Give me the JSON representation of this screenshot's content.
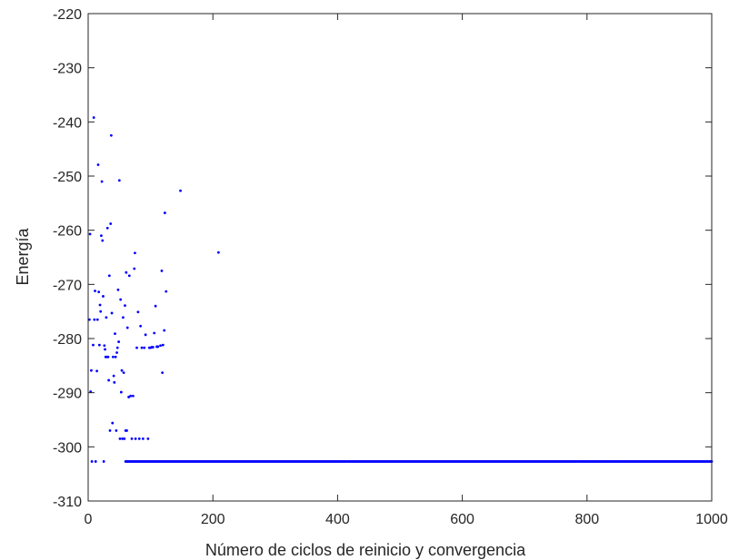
{
  "chart_data": {
    "type": "scatter",
    "title": "",
    "xlabel": "Número de ciclos de reinicio y convergencia",
    "ylabel": "Energía",
    "xlim": [
      0,
      1000
    ],
    "ylim": [
      -310,
      -220
    ],
    "xticks": [
      0,
      200,
      400,
      600,
      800,
      1000
    ],
    "yticks": [
      -310,
      -300,
      -290,
      -280,
      -270,
      -260,
      -250,
      -240,
      -230,
      -220
    ],
    "grid": false,
    "legend": "none",
    "marker_color": "#0000ff",
    "points": [
      [
        2,
        -276.5
      ],
      [
        3,
        -260.7
      ],
      [
        4,
        -289.8
      ],
      [
        5,
        -285.9
      ],
      [
        6,
        -302.7
      ],
      [
        8,
        -281.2
      ],
      [
        9,
        -239.2
      ],
      [
        10,
        -276.5
      ],
      [
        11,
        -271.2
      ],
      [
        12,
        -302.7
      ],
      [
        14,
        -286.0
      ],
      [
        15,
        -276.5
      ],
      [
        16,
        -247.9
      ],
      [
        17,
        -271.4
      ],
      [
        18,
        -281.2
      ],
      [
        19,
        -273.8
      ],
      [
        20,
        -275.0
      ],
      [
        21,
        -261.0
      ],
      [
        22,
        -251.0
      ],
      [
        23,
        -261.9
      ],
      [
        24,
        -272.2
      ],
      [
        25,
        -302.7
      ],
      [
        26,
        -281.3
      ],
      [
        27,
        -282.0
      ],
      [
        28,
        -283.4
      ],
      [
        29,
        -276.1
      ],
      [
        30,
        -283.4
      ],
      [
        31,
        -259.6
      ],
      [
        32,
        -283.4
      ],
      [
        33,
        -287.7
      ],
      [
        34,
        -268.4
      ],
      [
        35,
        -297.0
      ],
      [
        36,
        -258.8
      ],
      [
        37,
        -242.5
      ],
      [
        38,
        -275.3
      ],
      [
        39,
        -295.6
      ],
      [
        40,
        -283.4
      ],
      [
        41,
        -286.9
      ],
      [
        42,
        -288.1
      ],
      [
        43,
        -279.1
      ],
      [
        44,
        -283.4
      ],
      [
        45,
        -297.0
      ],
      [
        46,
        -282.6
      ],
      [
        47,
        -281.7
      ],
      [
        48,
        -271.0
      ],
      [
        49,
        -280.6
      ],
      [
        50,
        -250.8
      ],
      [
        51,
        -298.5
      ],
      [
        52,
        -272.8
      ],
      [
        53,
        -289.9
      ],
      [
        54,
        -285.9
      ],
      [
        55,
        -298.5
      ],
      [
        56,
        -276.1
      ],
      [
        57,
        -286.3
      ],
      [
        58,
        -298.5
      ],
      [
        59,
        -273.9
      ],
      [
        60,
        -297.0
      ],
      [
        61,
        -267.8
      ],
      [
        62,
        -297.0
      ],
      [
        63,
        -278.0
      ],
      [
        65,
        -290.8
      ],
      [
        66,
        -268.4
      ],
      [
        68,
        -290.6
      ],
      [
        70,
        -298.5
      ],
      [
        72,
        -290.6
      ],
      [
        74,
        -267.1
      ],
      [
        75,
        -264.2
      ],
      [
        76,
        -298.5
      ],
      [
        78,
        -281.7
      ],
      [
        80,
        -275.1
      ],
      [
        82,
        -298.5
      ],
      [
        84,
        -277.7
      ],
      [
        86,
        -281.7
      ],
      [
        88,
        -298.5
      ],
      [
        90,
        -281.7
      ],
      [
        92,
        -279.3
      ],
      [
        96,
        -298.5
      ],
      [
        98,
        -281.7
      ],
      [
        100,
        -281.7
      ],
      [
        102,
        -281.6
      ],
      [
        104,
        -281.6
      ],
      [
        106,
        -279.0
      ],
      [
        108,
        -274.0
      ],
      [
        110,
        -281.5
      ],
      [
        112,
        -281.5
      ],
      [
        116,
        -281.3
      ],
      [
        118,
        -267.5
      ],
      [
        119,
        -286.3
      ],
      [
        120,
        -281.2
      ],
      [
        122,
        -278.5
      ],
      [
        123,
        -256.8
      ],
      [
        125,
        -271.3
      ],
      [
        148,
        -252.7
      ],
      [
        209,
        -264.1
      ]
    ],
    "constant_series": {
      "y": -302.7,
      "x_start": 60,
      "x_end": 1000,
      "step": 2
    }
  }
}
